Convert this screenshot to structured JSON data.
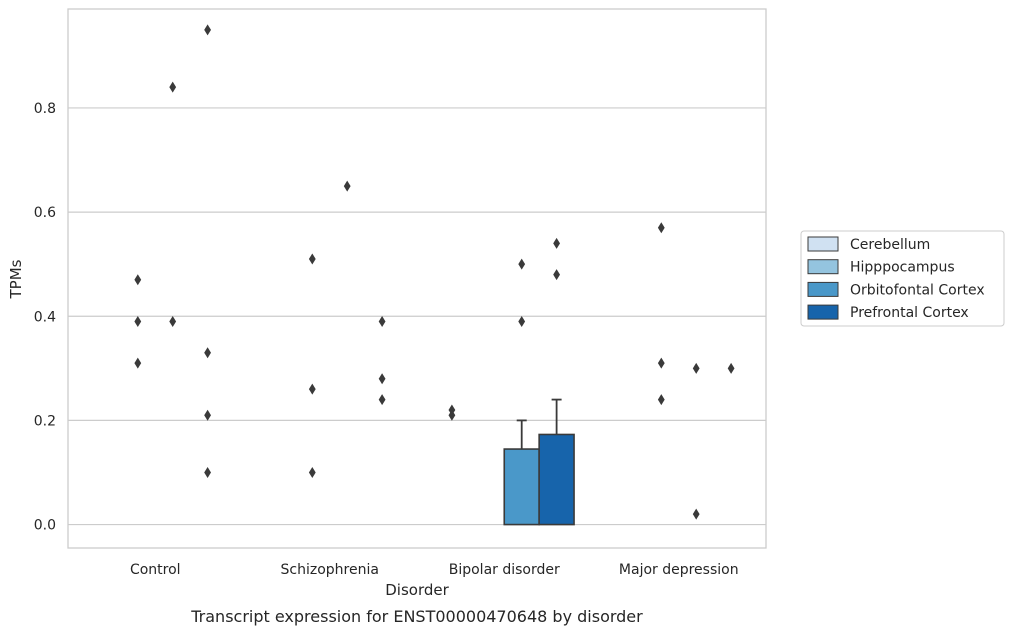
{
  "caption": "Transcript expression for ENST00000470648 by disorder",
  "chart_data": {
    "type": "bar",
    "title": "",
    "xlabel": "Disorder",
    "ylabel": "TPMs",
    "ylim": [
      -0.045,
      0.99
    ],
    "yticks": [
      0.0,
      0.2,
      0.4,
      0.6,
      0.8
    ],
    "ytick_labels": [
      "0.0",
      "0.2",
      "0.4",
      "0.6",
      "0.8"
    ],
    "grid": "horizontal",
    "legend_position": "right",
    "categories": [
      "Control",
      "Schizophrenia",
      "Bipolar disorder",
      "Major depression"
    ],
    "series": [
      {
        "name": "Cerebellum",
        "color": "#d0e1f2",
        "values": [
          0.0,
          0.0,
          0.0,
          0.0
        ],
        "error_upper": [
          null,
          null,
          null,
          null
        ],
        "outliers": [
          [],
          [],
          [
            0.21,
            0.22
          ],
          []
        ]
      },
      {
        "name": "Hipppocampus",
        "color": "#94c4df",
        "values": [
          0.0,
          0.0,
          0.0,
          0.0
        ],
        "error_upper": [
          null,
          null,
          null,
          null
        ],
        "outliers": [
          [
            0.31,
            0.39,
            0.47
          ],
          [
            0.1,
            0.26,
            0.51
          ],
          [],
          [
            0.24,
            0.31,
            0.57
          ]
        ]
      },
      {
        "name": "Orbitofontal Cortex",
        "color": "#4a98c9",
        "values": [
          0.0,
          0.0,
          0.145,
          0.0
        ],
        "error_upper": [
          null,
          null,
          0.2,
          null
        ],
        "outliers": [
          [
            0.39,
            0.84
          ],
          [
            0.65
          ],
          [
            0.39,
            0.5
          ],
          [
            0.02,
            0.3
          ]
        ]
      },
      {
        "name": "Prefrontal Cortex",
        "color": "#1764ab",
        "values": [
          0.0,
          0.0,
          0.173,
          0.0
        ],
        "error_upper": [
          null,
          null,
          0.24,
          null
        ],
        "outliers": [
          [
            0.1,
            0.21,
            0.33,
            0.95
          ],
          [
            0.24,
            0.28,
            0.39
          ],
          [
            0.48,
            0.54
          ],
          [
            0.3
          ]
        ]
      }
    ]
  }
}
